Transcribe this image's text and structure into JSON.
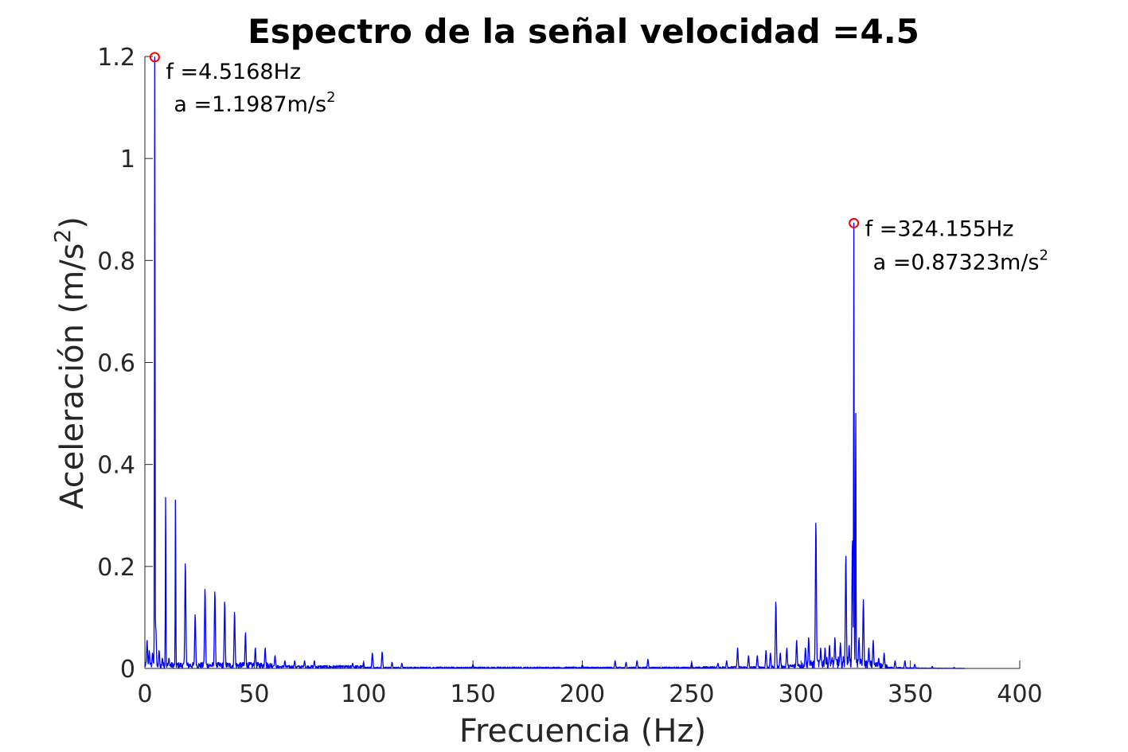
{
  "chart_data": {
    "type": "line",
    "title": "Espectro de la señal velocidad =4.5",
    "xlabel": "Frecuencia (Hz)",
    "ylabel_main": "Aceleración (m/s",
    "ylabel_sup": "2",
    "ylabel_close": ")",
    "xlim": [
      0,
      400
    ],
    "ylim": [
      0,
      1.2
    ],
    "xticks": [
      0,
      50,
      100,
      150,
      200,
      250,
      300,
      350,
      400
    ],
    "xtick_labels": [
      "0",
      "50",
      "100",
      "150",
      "200",
      "250",
      "300",
      "350",
      "400"
    ],
    "yticks": [
      0,
      0.2,
      0.4,
      0.6,
      0.8,
      1.0,
      1.2
    ],
    "ytick_labels": [
      "0",
      "0.2",
      "0.4",
      "0.6",
      "0.8",
      "1",
      "1.2"
    ],
    "grid": false,
    "series": [
      {
        "color": "#0000ff",
        "peaks": [
          [
            1.0,
            0.055
          ],
          [
            2.0,
            0.035
          ],
          [
            3.5,
            0.03
          ],
          [
            4.5168,
            1.1987
          ],
          [
            5.0,
            0.08
          ],
          [
            6.5,
            0.035
          ],
          [
            8.0,
            0.02
          ],
          [
            9.5,
            0.335
          ],
          [
            11.0,
            0.02
          ],
          [
            14.0,
            0.33
          ],
          [
            18.5,
            0.205
          ],
          [
            23.0,
            0.105
          ],
          [
            27.5,
            0.155
          ],
          [
            32.0,
            0.15
          ],
          [
            36.5,
            0.13
          ],
          [
            41.0,
            0.11
          ],
          [
            46.0,
            0.07
          ],
          [
            50.5,
            0.04
          ],
          [
            55.0,
            0.04
          ],
          [
            59.5,
            0.025
          ],
          [
            64.0,
            0.015
          ],
          [
            68.5,
            0.015
          ],
          [
            73.0,
            0.015
          ],
          [
            77.5,
            0.015
          ],
          [
            95.0,
            0.01
          ],
          [
            100.0,
            0.012
          ],
          [
            104.0,
            0.03
          ],
          [
            108.5,
            0.032
          ],
          [
            113.0,
            0.012
          ],
          [
            117.5,
            0.01
          ],
          [
            150.0,
            0.008
          ],
          [
            200.0,
            0.007
          ],
          [
            215.0,
            0.015
          ],
          [
            220.0,
            0.012
          ],
          [
            225.0,
            0.015
          ],
          [
            230.0,
            0.018
          ],
          [
            250.0,
            0.012
          ],
          [
            262.0,
            0.01
          ],
          [
            266.0,
            0.015
          ],
          [
            271.0,
            0.04
          ],
          [
            276.0,
            0.025
          ],
          [
            280.0,
            0.025
          ],
          [
            284.0,
            0.035
          ],
          [
            286.0,
            0.03
          ],
          [
            288.5,
            0.13
          ],
          [
            290.5,
            0.03
          ],
          [
            293.5,
            0.04
          ],
          [
            298.0,
            0.055
          ],
          [
            302.0,
            0.04
          ],
          [
            303.5,
            0.06
          ],
          [
            306.8,
            0.285
          ],
          [
            309.0,
            0.04
          ],
          [
            311.0,
            0.04
          ],
          [
            313.0,
            0.045
          ],
          [
            315.5,
            0.06
          ],
          [
            318.0,
            0.05
          ],
          [
            320.5,
            0.22
          ],
          [
            322.0,
            0.045
          ],
          [
            323.5,
            0.25
          ],
          [
            324.155,
            0.87323
          ],
          [
            325.0,
            0.5
          ],
          [
            326.5,
            0.06
          ],
          [
            328.5,
            0.135
          ],
          [
            331.0,
            0.04
          ],
          [
            333.0,
            0.055
          ],
          [
            335.5,
            0.02
          ],
          [
            338.0,
            0.03
          ],
          [
            343.0,
            0.015
          ],
          [
            347.5,
            0.015
          ],
          [
            352.0,
            0.008
          ],
          [
            360.0,
            0.004
          ],
          [
            370.0,
            0.002
          ]
        ]
      }
    ],
    "annotations": [
      {
        "x": 4.5168,
        "y": 1.1987,
        "line1": "f =4.5168Hz",
        "line2": "a =1.1987m/s",
        "sup": "2",
        "marker_color": "#ff0000"
      },
      {
        "x": 324.155,
        "y": 0.87323,
        "line1": "f =324.155Hz",
        "line2": "a =0.87323m/s",
        "sup": "2",
        "marker_color": "#ff0000"
      }
    ]
  }
}
